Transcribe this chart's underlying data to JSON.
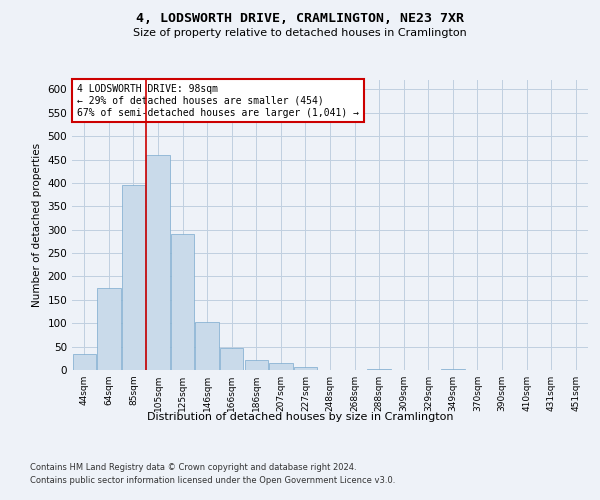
{
  "title": "4, LODSWORTH DRIVE, CRAMLINGTON, NE23 7XR",
  "subtitle": "Size of property relative to detached houses in Cramlington",
  "xlabel": "Distribution of detached houses by size in Cramlington",
  "ylabel": "Number of detached properties",
  "footnote1": "Contains HM Land Registry data © Crown copyright and database right 2024.",
  "footnote2": "Contains public sector information licensed under the Open Government Licence v3.0.",
  "annotation_title": "4 LODSWORTH DRIVE: 98sqm",
  "annotation_line2": "← 29% of detached houses are smaller (454)",
  "annotation_line3": "67% of semi-detached houses are larger (1,041) →",
  "bar_color": "#c9daea",
  "bar_edge_color": "#7aaace",
  "grid_color": "#c0cfe0",
  "vline_color": "#cc0000",
  "vline_x": 2.5,
  "categories": [
    "44sqm",
    "64sqm",
    "85sqm",
    "105sqm",
    "125sqm",
    "146sqm",
    "166sqm",
    "186sqm",
    "207sqm",
    "227sqm",
    "248sqm",
    "268sqm",
    "288sqm",
    "309sqm",
    "329sqm",
    "349sqm",
    "370sqm",
    "390sqm",
    "410sqm",
    "431sqm",
    "451sqm"
  ],
  "values": [
    35,
    175,
    395,
    460,
    290,
    102,
    48,
    22,
    14,
    7,
    1,
    0,
    2,
    0,
    0,
    2,
    0,
    1,
    0,
    0,
    1
  ],
  "ylim": [
    0,
    620
  ],
  "yticks": [
    0,
    50,
    100,
    150,
    200,
    250,
    300,
    350,
    400,
    450,
    500,
    550,
    600
  ],
  "background_color": "#eef2f8",
  "plot_bg_color": "#eef2f8"
}
